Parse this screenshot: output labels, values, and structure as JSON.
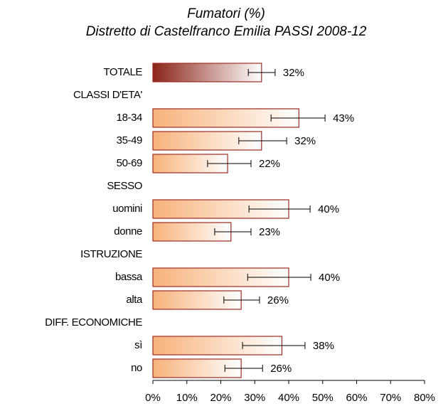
{
  "chart_data": {
    "type": "hbar-error",
    "title": "Fumatori (%)",
    "subtitle": "Distretto di Castelfranco Emilia PASSI 2008-12",
    "categories": [
      "TOTALE",
      "CLASSI D'ETA'",
      "18-34",
      "35-49",
      "50-69",
      "SESSO",
      "uomini",
      "donne",
      "ISTRUZIONE",
      "bassa",
      "alta",
      "DIFF. ECONOMICHE",
      "sì",
      "no"
    ],
    "values": [
      32,
      null,
      43,
      32,
      22,
      null,
      40,
      23,
      null,
      40,
      26,
      null,
      38,
      26
    ],
    "value_labels": [
      "32%",
      null,
      "43%",
      "32%",
      "22%",
      null,
      "40%",
      "23%",
      null,
      "40%",
      "26%",
      null,
      "38%",
      "26%"
    ],
    "error_low": [
      28.1,
      null,
      34.8,
      25.3,
      16.1,
      null,
      28.3,
      18.2,
      null,
      27.9,
      20.9,
      null,
      26.4,
      21.2
    ],
    "error_high": [
      36.0,
      null,
      50.7,
      39.4,
      28.9,
      null,
      46.3,
      28.9,
      null,
      46.5,
      31.4,
      null,
      44.8,
      32.3
    ],
    "colors": [
      "#8b2418",
      null,
      "#f7b27a",
      "#f7b27a",
      "#f7b27a",
      null,
      "#f7b27a",
      "#f7b27a",
      null,
      "#f7b27a",
      "#f7b27a",
      null,
      "#f7b27a",
      "#f7b27a"
    ],
    "border_color": "#9c2a22",
    "xlim": [
      0,
      80
    ],
    "xticks": [
      {
        "value": 0,
        "label": "0%"
      },
      {
        "value": 10,
        "label": "10%"
      },
      {
        "value": 20,
        "label": "20%"
      },
      {
        "value": 30,
        "label": "30%"
      },
      {
        "value": 40,
        "label": "40%"
      },
      {
        "value": 50,
        "label": "50%"
      },
      {
        "value": 60,
        "label": "60%"
      },
      {
        "value": 70,
        "label": "70%"
      },
      {
        "value": 80,
        "label": "80%"
      }
    ]
  }
}
